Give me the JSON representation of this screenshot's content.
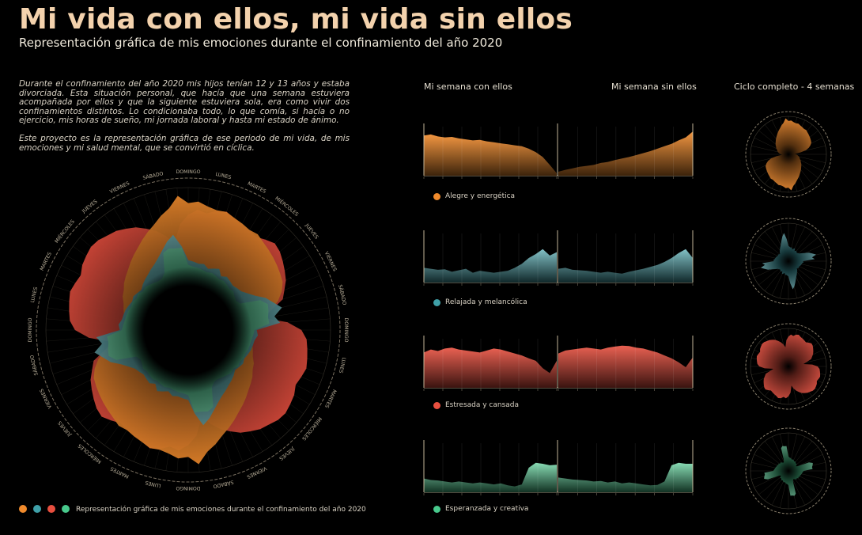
{
  "header": {
    "title": "Mi vida con ellos, mi vida sin ellos",
    "subtitle": "Representación gráfica de mis emociones durante el confinamiento del año 2020"
  },
  "intro": {
    "p1": "Durante el confinamiento del año 2020 mis hijos tenían 12 y 13 años y estaba divorciada. Esta situación personal, que hacía que una semana estuviera acompañada por ellos y que la siguiente estuviera sola, era como vivir dos confinamientos distintos. Lo condicionaba todo, lo que comía, si hacía o no ejercicio, mis horas de sueño, mi jornada laboral y hasta mi estado de ánimo.",
    "p2": "Este proyecto es la representación gráfica de ese periodo de mi vida, de mis emociones y mi salud mental, que se convirtió en cíclica."
  },
  "columns": {
    "with": "Mi semana con ellos",
    "without": "Mi semana sin ellos",
    "cycle": "Ciclo completo - 4 semanas"
  },
  "legend": {
    "text": "Representación gráfica de mis emociones durante el confinamiento del año 2020"
  },
  "colors": {
    "orange": "#f08a2c",
    "teal": "#3fa0a8",
    "red": "#e84f3f",
    "green": "#48c98c"
  },
  "day_labels_ring": [
    "DOMINGO",
    "LUNES",
    "MARTES",
    "MIÉRCOLES",
    "JUEVES",
    "VIERNES",
    "SÁBADO",
    "DOMINGO",
    "LUNES",
    "MARTES",
    "MIÉRCOLES",
    "JUEVES",
    "VIERNES",
    "SÁBADO",
    "DOMINGO",
    "LUNES",
    "MARTES",
    "MIÉRCOLES",
    "JUEVES",
    "VIERNES",
    "SÁBADO",
    "DOMINGO",
    "LUNES",
    "MARTES",
    "MIÉRCOLES",
    "JUEVES",
    "VIERNES",
    "SÁBADO"
  ],
  "chart_data": [
    {
      "type": "area",
      "name": "Alegre y energética",
      "color": "#f08a2c",
      "with": [
        0.82,
        0.84,
        0.8,
        0.78,
        0.79,
        0.76,
        0.74,
        0.72,
        0.73,
        0.7,
        0.68,
        0.66,
        0.64,
        0.62,
        0.6,
        0.55,
        0.48,
        0.38,
        0.22,
        0.05
      ],
      "without": [
        0.08,
        0.12,
        0.15,
        0.18,
        0.2,
        0.22,
        0.26,
        0.28,
        0.32,
        0.35,
        0.38,
        0.42,
        0.46,
        0.5,
        0.55,
        0.6,
        0.65,
        0.72,
        0.78,
        0.9
      ]
    },
    {
      "type": "area",
      "name": "Relajada y melancólica",
      "color": "#3fa0a8",
      "with": [
        0.3,
        0.28,
        0.26,
        0.27,
        0.22,
        0.25,
        0.28,
        0.2,
        0.24,
        0.22,
        0.2,
        0.22,
        0.24,
        0.3,
        0.38,
        0.5,
        0.58,
        0.68,
        0.55,
        0.62
      ],
      "without": [
        0.28,
        0.3,
        0.26,
        0.25,
        0.24,
        0.22,
        0.2,
        0.22,
        0.2,
        0.18,
        0.22,
        0.25,
        0.28,
        0.32,
        0.36,
        0.42,
        0.5,
        0.6,
        0.68,
        0.5
      ]
    },
    {
      "type": "area",
      "name": "Estresada y cansada",
      "color": "#e84f3f",
      "with": [
        0.72,
        0.78,
        0.75,
        0.8,
        0.82,
        0.78,
        0.76,
        0.74,
        0.72,
        0.76,
        0.8,
        0.78,
        0.74,
        0.7,
        0.66,
        0.6,
        0.55,
        0.4,
        0.3,
        0.55
      ],
      "without": [
        0.7,
        0.76,
        0.78,
        0.8,
        0.82,
        0.8,
        0.78,
        0.82,
        0.84,
        0.86,
        0.85,
        0.82,
        0.8,
        0.76,
        0.72,
        0.66,
        0.6,
        0.52,
        0.42,
        0.62
      ]
    },
    {
      "type": "area",
      "name": "Esperanzada y creativa",
      "color": "#48c98c",
      "with": [
        0.28,
        0.25,
        0.24,
        0.22,
        0.2,
        0.22,
        0.2,
        0.18,
        0.2,
        0.18,
        0.16,
        0.18,
        0.14,
        0.12,
        0.16,
        0.5,
        0.6,
        0.58,
        0.55,
        0.56
      ],
      "without": [
        0.3,
        0.28,
        0.26,
        0.25,
        0.24,
        0.22,
        0.23,
        0.2,
        0.22,
        0.18,
        0.2,
        0.18,
        0.16,
        0.14,
        0.15,
        0.22,
        0.55,
        0.6,
        0.58,
        0.58
      ]
    }
  ]
}
